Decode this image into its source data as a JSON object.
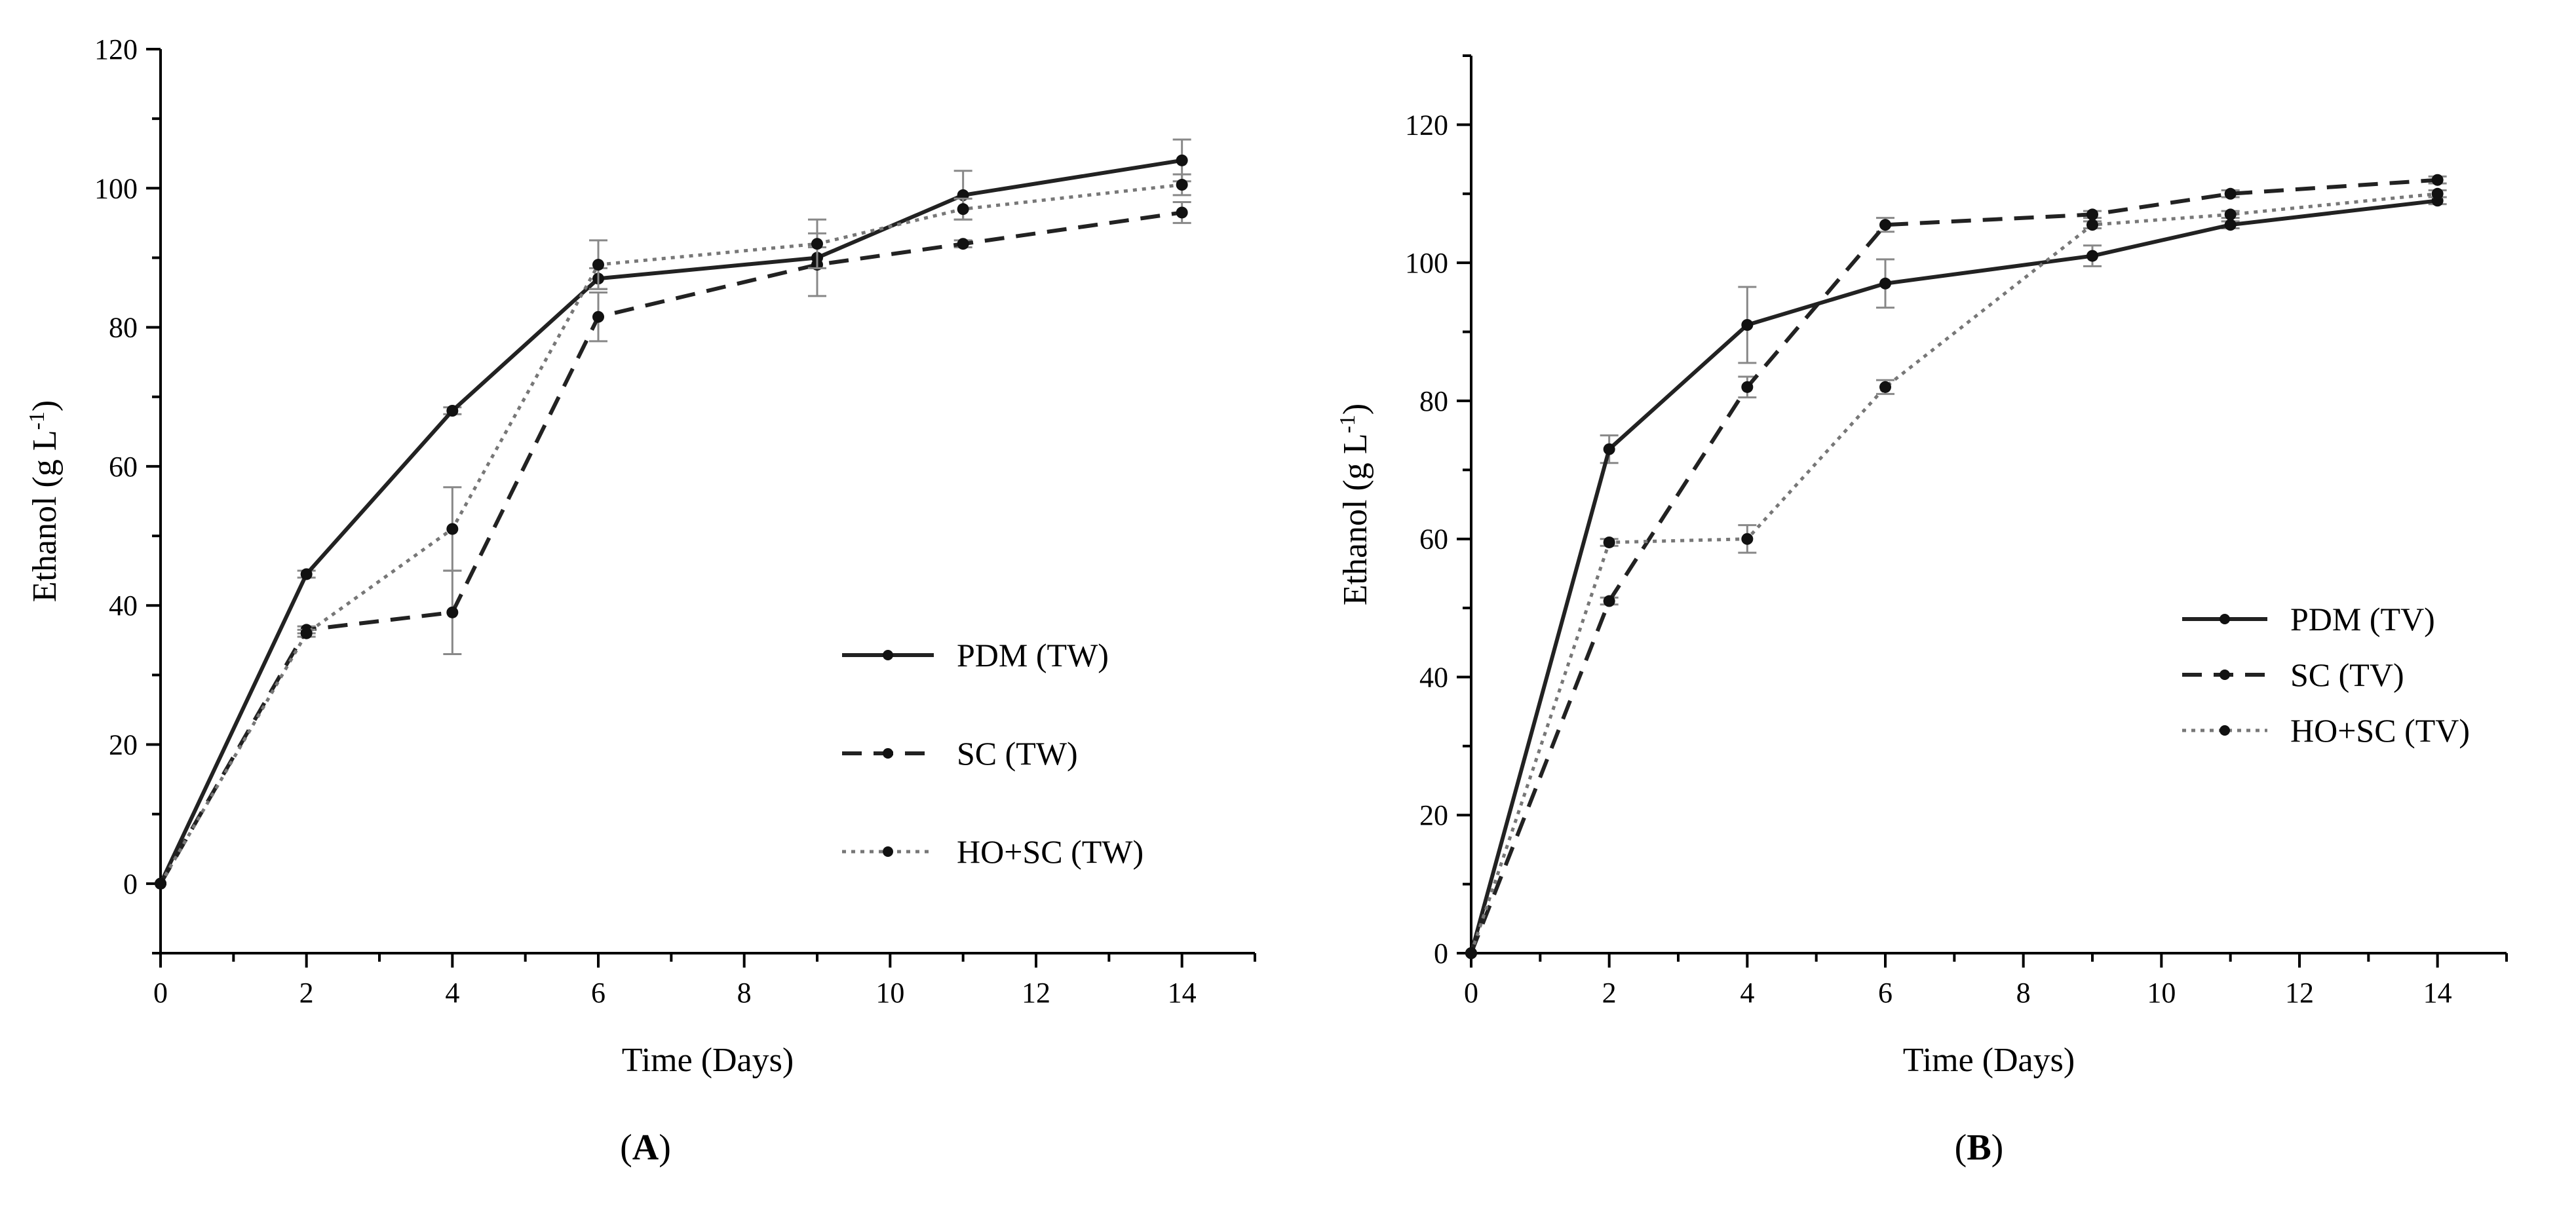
{
  "chart_data": [
    {
      "type": "line",
      "panel": "A",
      "panel_label": "A",
      "xlabel": "Time (Days)",
      "ylabel": "Ethanol  (g L",
      "ylabel_sup": "-1",
      "ylabel_close": ")",
      "xlim": [
        0,
        15
      ],
      "ylim": [
        -10,
        120
      ],
      "x_ticks": [
        0,
        2,
        4,
        6,
        8,
        10,
        12,
        14
      ],
      "y_ticks": [
        0,
        20,
        40,
        60,
        80,
        100,
        120
      ],
      "x": [
        0,
        2,
        4,
        6,
        9,
        11,
        14
      ],
      "legend_position": "center-right",
      "series": [
        {
          "name": "PDM (TW)",
          "style": "solid",
          "color": "#222222",
          "values": [
            0,
            44.5,
            68,
            87,
            90,
            99,
            104
          ],
          "errors": [
            0,
            0.5,
            0.5,
            1.5,
            1.5,
            3.5,
            3
          ]
        },
        {
          "name": "SC (TW)",
          "style": "dashed",
          "color": "#222222",
          "values": [
            0,
            36.5,
            39,
            81.5,
            89,
            92,
            96.5
          ],
          "errors": [
            0,
            0.5,
            6,
            3.5,
            4.5,
            0.5,
            1.5
          ]
        },
        {
          "name": "HO+SC (TW)",
          "style": "dotted",
          "color": "#777777",
          "values": [
            0,
            36,
            51,
            89,
            92,
            97,
            100.5
          ],
          "errors": [
            0,
            0.5,
            6,
            3.5,
            3.5,
            1.5,
            1.5
          ]
        }
      ]
    },
    {
      "type": "line",
      "panel": "B",
      "panel_label": "B",
      "xlabel": "Time (Days)",
      "ylabel": "Ethanol  (g L",
      "ylabel_sup": "-1",
      "ylabel_close": ")",
      "xlim": [
        0,
        15
      ],
      "ylim": [
        0,
        130
      ],
      "x_ticks": [
        0,
        2,
        4,
        6,
        8,
        10,
        12,
        14
      ],
      "y_ticks": [
        0,
        20,
        40,
        60,
        80,
        100,
        120
      ],
      "x": [
        0,
        2,
        4,
        6,
        9,
        11,
        14
      ],
      "legend_position": "center-right",
      "series": [
        {
          "name": "PDM (TV)",
          "style": "solid",
          "color": "#222222",
          "values": [
            0,
            73,
            91,
            97,
            101,
            105.5,
            109
          ],
          "errors": [
            0,
            2,
            5.5,
            3.5,
            1.5,
            0.5,
            0.5
          ]
        },
        {
          "name": "SC (TV)",
          "style": "dashed",
          "color": "#222222",
          "values": [
            0,
            51,
            82,
            105.5,
            107,
            110,
            112
          ],
          "errors": [
            0,
            0.5,
            1.5,
            1,
            0.5,
            0.5,
            0.5
          ]
        },
        {
          "name": "HO+SC (TV)",
          "style": "dotted",
          "color": "#777777",
          "values": [
            0,
            59.5,
            60,
            82,
            105.5,
            107,
            110
          ],
          "errors": [
            0,
            0.5,
            2,
            1,
            0.5,
            0.5,
            0.5
          ]
        }
      ]
    }
  ]
}
